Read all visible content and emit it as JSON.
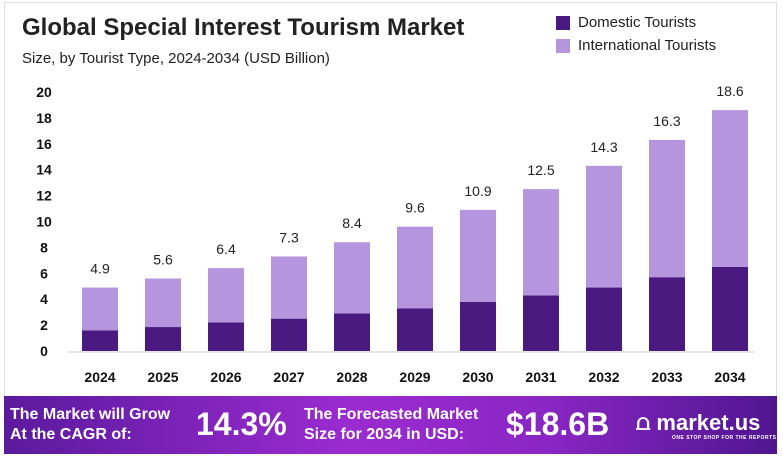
{
  "chart_data": {
    "type": "bar",
    "stacked": true,
    "title": "Global Special Interest Tourism Market",
    "subtitle": "Size, by Tourist Type, 2024-2034 (USD Billion)",
    "categories": [
      "2024",
      "2025",
      "2026",
      "2027",
      "2028",
      "2029",
      "2030",
      "2031",
      "2032",
      "2033",
      "2034"
    ],
    "series": [
      {
        "name": "Domestic Tourists",
        "color": "#4b1a80",
        "values": [
          1.6,
          1.85,
          2.2,
          2.5,
          2.9,
          3.3,
          3.8,
          4.3,
          4.9,
          5.7,
          6.5
        ]
      },
      {
        "name": "International Tourists",
        "color": "#b595dd",
        "values": [
          3.3,
          3.75,
          4.2,
          4.8,
          5.5,
          6.3,
          7.1,
          8.2,
          9.4,
          10.6,
          12.1
        ]
      }
    ],
    "totals": [
      "4.9",
      "5.6",
      "6.4",
      "7.3",
      "8.4",
      "9.6",
      "10.9",
      "12.5",
      "14.3",
      "16.3",
      "18.6"
    ],
    "ylim": [
      0,
      20
    ],
    "yticks": [
      "0",
      "2",
      "4",
      "6",
      "8",
      "10",
      "12",
      "14",
      "16",
      "18",
      "20"
    ],
    "grid": false,
    "legend": "top-right"
  },
  "banner": {
    "cagr_label_1": "The Market will Grow",
    "cagr_label_2": "At the CAGR of:",
    "cagr_value": "14.3%",
    "forecast_label_1": "The Forecasted Market",
    "forecast_label_2": "Size for 2034 in USD:",
    "forecast_value": "$18.6B",
    "logo_text": "market.us",
    "logo_tagline": "ONE STOP SHOP FOR THE REPORTS"
  }
}
